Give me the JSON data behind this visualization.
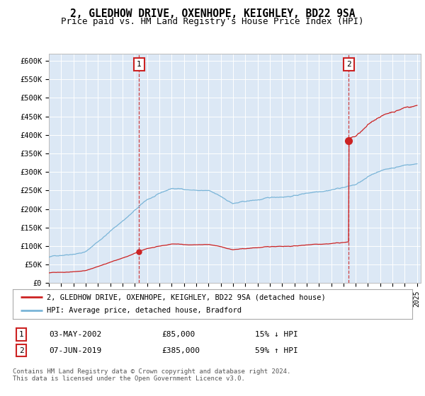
{
  "title": "2, GLEDHOW DRIVE, OXENHOPE, KEIGHLEY, BD22 9SA",
  "subtitle": "Price paid vs. HM Land Registry's House Price Index (HPI)",
  "ylim": [
    0,
    620000
  ],
  "yticks": [
    0,
    50000,
    100000,
    150000,
    200000,
    250000,
    300000,
    350000,
    400000,
    450000,
    500000,
    550000,
    600000
  ],
  "ytick_labels": [
    "£0",
    "£50K",
    "£100K",
    "£150K",
    "£200K",
    "£250K",
    "£300K",
    "£350K",
    "£400K",
    "£450K",
    "£500K",
    "£550K",
    "£600K"
  ],
  "x_start_year": 1995,
  "x_end_year": 2025,
  "sale1_date": 2002.35,
  "sale1_price": 85000,
  "sale2_date": 2019.44,
  "sale2_price": 385000,
  "hpi_color": "#7ab5d8",
  "price_color": "#cc2222",
  "background_color": "#dce8f5",
  "legend_label1": "2, GLEDHOW DRIVE, OXENHOPE, KEIGHLEY, BD22 9SA (detached house)",
  "legend_label2": "HPI: Average price, detached house, Bradford",
  "table_row1": [
    "1",
    "03-MAY-2002",
    "£85,000",
    "15% ↓ HPI"
  ],
  "table_row2": [
    "2",
    "07-JUN-2019",
    "£385,000",
    "59% ↑ HPI"
  ],
  "footnote": "Contains HM Land Registry data © Crown copyright and database right 2024.\nThis data is licensed under the Open Government Licence v3.0."
}
